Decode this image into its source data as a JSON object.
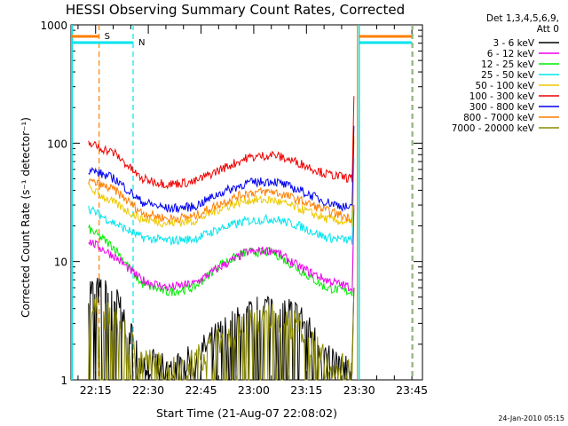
{
  "chart_data": {
    "type": "line",
    "title": "HESSI Observing Summary Count Rates, Corrected",
    "xlabel": "Start Time (21-Aug-07 22:08:02)",
    "ylabel": "Corrected Count Rate (s⁻¹ detector⁻¹)",
    "yscale": "log",
    "ylim": [
      1,
      1000
    ],
    "xlim_minutes": [
      "22:08",
      "23:48"
    ],
    "x_ticks": [
      "22:15",
      "22:30",
      "22:45",
      "23:00",
      "23:15",
      "23:30",
      "23:45"
    ],
    "y_ticks": [
      "1",
      "10",
      "100",
      "1000"
    ],
    "legend_header": [
      "Det 1,3,4,5,6,9,",
      "Att 0"
    ],
    "legend_position": "right",
    "timestamp": "24-Jan-2010 05:15",
    "markers": {
      "saa": {
        "label": "S",
        "color": "#ff7f00",
        "start": "22:16",
        "end": "23:45"
      },
      "night": {
        "label": "N",
        "color": "#00e5ee",
        "start": "22:08",
        "end": "23:30"
      }
    },
    "data_start": "22:13",
    "data_end": "23:28",
    "series": [
      {
        "name": "3 - 6 keV",
        "color": "#000000",
        "levels": [
          6,
          5,
          1.5,
          1.2,
          1.5,
          2.5,
          3.5,
          4.5,
          3.5,
          1.6,
          1.2
        ]
      },
      {
        "name": "6 - 12 keV",
        "color": "#ee00ee",
        "levels": [
          15,
          11,
          7,
          6,
          6.5,
          9,
          12,
          12.5,
          9,
          7,
          6
        ]
      },
      {
        "name": "12 - 25 keV",
        "color": "#00ee00",
        "levels": [
          19,
          13,
          6.5,
          5.5,
          6,
          9.5,
          12,
          12,
          8.5,
          6,
          5.5
        ]
      },
      {
        "name": "25 - 50 keV",
        "color": "#00e5ee",
        "levels": [
          28,
          21,
          16,
          15,
          15.5,
          19,
          22,
          23,
          20,
          16,
          15
        ]
      },
      {
        "name": "50 - 100 keV",
        "color": "#eec900",
        "levels": [
          42,
          31,
          23,
          21,
          22,
          28,
          33,
          33,
          28,
          23,
          21
        ]
      },
      {
        "name": "100 - 300 keV",
        "color": "#ee0000",
        "levels": [
          100,
          82,
          50,
          45,
          47,
          60,
          75,
          80,
          68,
          55,
          50
        ]
      },
      {
        "name": "300 - 800 keV",
        "color": "#0000ee",
        "levels": [
          60,
          50,
          32,
          28,
          29,
          38,
          46,
          48,
          40,
          32,
          28
        ]
      },
      {
        "name": "800 - 7000 keV",
        "color": "#ff7f00",
        "levels": [
          48,
          40,
          26,
          23,
          24,
          31,
          38,
          39,
          33,
          27,
          23
        ]
      },
      {
        "name": "7000 - 20000 keV",
        "color": "#8b8b00",
        "levels": [
          4,
          3.2,
          1.5,
          1.2,
          1.4,
          2.2,
          3,
          3.5,
          2.8,
          1.4,
          1.2
        ]
      }
    ]
  }
}
